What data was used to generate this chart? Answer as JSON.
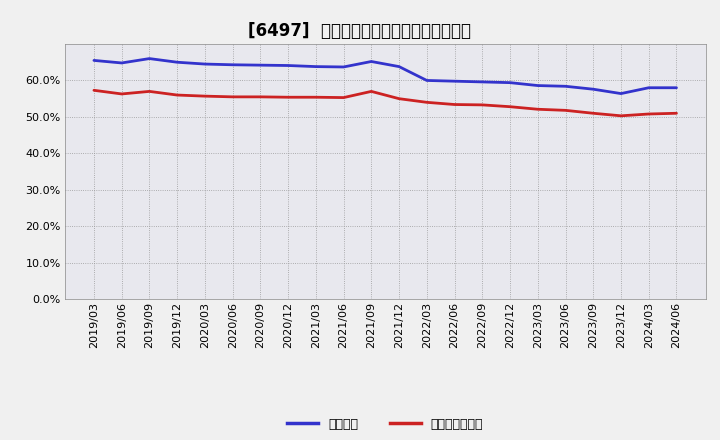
{
  "title": "[6497]  固定比率、固定長期適合率の推移",
  "x_labels": [
    "2019/03",
    "2019/06",
    "2019/09",
    "2019/12",
    "2020/03",
    "2020/06",
    "2020/09",
    "2020/12",
    "2021/03",
    "2021/06",
    "2021/09",
    "2021/12",
    "2022/03",
    "2022/06",
    "2022/09",
    "2022/12",
    "2023/03",
    "2023/06",
    "2023/09",
    "2023/12",
    "2024/03",
    "2024/06"
  ],
  "fixed_ratio": [
    0.655,
    0.648,
    0.66,
    0.65,
    0.645,
    0.643,
    0.642,
    0.641,
    0.638,
    0.637,
    0.652,
    0.638,
    0.6,
    0.598,
    0.596,
    0.594,
    0.586,
    0.584,
    0.576,
    0.564,
    0.58,
    0.58
  ],
  "fixed_long_ratio": [
    0.573,
    0.563,
    0.57,
    0.56,
    0.557,
    0.555,
    0.555,
    0.554,
    0.554,
    0.553,
    0.57,
    0.55,
    0.54,
    0.534,
    0.533,
    0.528,
    0.521,
    0.518,
    0.51,
    0.503,
    0.508,
    0.51
  ],
  "line_color_blue": "#3333cc",
  "line_color_red": "#cc2222",
  "bg_color": "#f0f0f0",
  "plot_bg_color": "#e8e8ee",
  "grid_color": "#999999",
  "legend_blue": "固定比率",
  "legend_red": "固定長期適合率",
  "ylim": [
    0.0,
    0.7
  ],
  "yticks": [
    0.0,
    0.1,
    0.2,
    0.3,
    0.4,
    0.5,
    0.6
  ],
  "title_fontsize": 12,
  "label_fontsize": 8,
  "legend_fontsize": 9,
  "line_width": 2.0
}
